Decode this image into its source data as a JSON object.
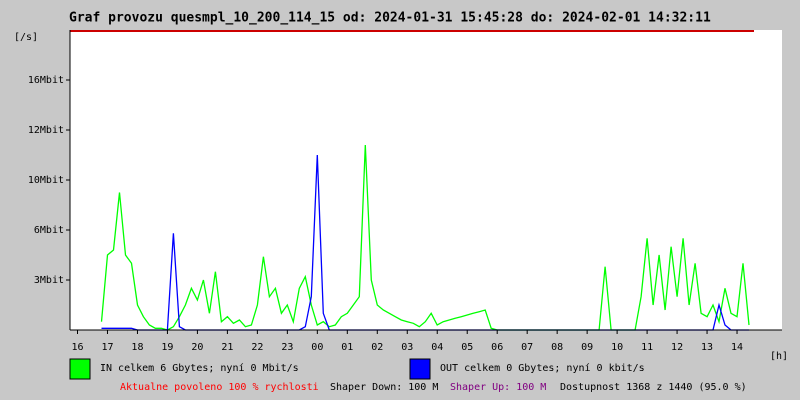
{
  "chart_data": {
    "type": "line",
    "title": "Graf provozu quesmpl_10_200_114_15 od: 2024-01-31 15:45:28 do: 2024-02-01 14:32:11",
    "y_label": "[/s]",
    "x_label": "[h]",
    "xlim": [
      15.75,
      39.5
    ],
    "xticks": [
      16,
      17,
      18,
      19,
      20,
      21,
      22,
      23,
      {
        "value": 24,
        "label": "00"
      },
      {
        "value": 25,
        "label": "01"
      },
      {
        "value": 26,
        "label": "02"
      },
      {
        "value": 27,
        "label": "03"
      },
      {
        "value": 28,
        "label": "04"
      },
      {
        "value": 29,
        "label": "05"
      },
      {
        "value": 30,
        "label": "06"
      },
      {
        "value": 31,
        "label": "07"
      },
      {
        "value": 32,
        "label": "08"
      },
      {
        "value": 33,
        "label": "09"
      },
      {
        "value": 34,
        "label": "10"
      },
      {
        "value": 35,
        "label": "11"
      },
      {
        "value": 36,
        "label": "12"
      },
      {
        "value": 37,
        "label": "13"
      },
      {
        "value": 38,
        "label": "14"
      }
    ],
    "ylim": [
      0,
      20
    ],
    "yticks": [
      {
        "value": 3,
        "label": "3Mbit"
      },
      {
        "value": 6,
        "label": "6Mbit"
      },
      {
        "value": 10,
        "label": "10Mbit"
      },
      {
        "value": 12,
        "label": "12Mbit"
      },
      {
        "value": 16,
        "label": "16Mbit"
      }
    ],
    "x": [
      16.8,
      17,
      17.2,
      17.4,
      17.6,
      17.8,
      18,
      18.2,
      18.4,
      18.6,
      18.8,
      19,
      19.2,
      19.4,
      19.6,
      19.8,
      20,
      20.2,
      20.4,
      20.6,
      20.8,
      21,
      21.2,
      21.4,
      21.6,
      21.8,
      22,
      22.2,
      22.4,
      22.6,
      22.8,
      23,
      23.2,
      23.4,
      23.6,
      23.8,
      24,
      24.2,
      24.4,
      24.6,
      24.8,
      25,
      25.2,
      25.4,
      25.6,
      25.8,
      26,
      26.2,
      26.4,
      26.6,
      26.8,
      27,
      27.2,
      27.4,
      27.6,
      27.8,
      28,
      28.2,
      28.4,
      28.6,
      28.8,
      29,
      29.2,
      29.4,
      29.6,
      29.8,
      30,
      30.2,
      30.4,
      30.6,
      30.8,
      31,
      31.2,
      31.4,
      31.6,
      31.8,
      32,
      32.2,
      32.4,
      32.6,
      32.8,
      33,
      33.2,
      33.4,
      33.6,
      33.8,
      34,
      34.2,
      34.4,
      34.6,
      34.8,
      35,
      35.2,
      35.4,
      35.6,
      35.8,
      36,
      36.2,
      36.4,
      36.6,
      36.8,
      37,
      37.2,
      37.4,
      37.6,
      37.8,
      38,
      38.2,
      38.4
    ],
    "series": [
      {
        "name": "IN celkem 6 Gbytes; nyní 0 Mbit/s",
        "color": "#00ff00",
        "values": [
          0.5,
          4.5,
          4.8,
          9,
          4.5,
          4,
          1.5,
          0.8,
          0.3,
          0.1,
          0.1,
          0,
          0.2,
          0.8,
          1.5,
          2.5,
          1.8,
          3,
          1,
          3.5,
          0.5,
          0.8,
          0.4,
          0.6,
          0.2,
          0.3,
          1.5,
          4.4,
          2,
          2.5,
          1,
          1.5,
          0.5,
          2.5,
          3.2,
          1.5,
          0.3,
          0.5,
          0.2,
          0.3,
          0.8,
          1,
          1.5,
          2,
          11.4,
          3,
          1.5,
          1.2,
          1,
          0.8,
          0.6,
          0.5,
          0.4,
          0.2,
          0.5,
          1,
          0.3,
          0.5,
          0.6,
          0.7,
          0.8,
          0.9,
          1,
          1.1,
          1.2,
          0.1,
          0,
          0,
          0,
          0,
          0,
          0,
          0,
          0,
          0,
          0,
          0,
          0,
          0,
          0,
          0,
          0,
          0,
          0,
          3.8,
          0,
          0,
          0,
          0,
          0,
          2,
          5.5,
          1.5,
          4.5,
          1.2,
          5,
          2,
          5.5,
          1.5,
          4,
          1,
          0.8,
          1.5,
          0.5,
          2.5,
          1,
          0.8,
          4,
          0.3
        ]
      },
      {
        "name": "OUT celkem 0 Gbytes; nyní 0 kbit/s",
        "color": "#0000ff",
        "values": [
          0.1,
          0.1,
          0.1,
          0.1,
          0.1,
          0.1,
          0,
          0,
          0,
          0,
          0,
          0,
          5.8,
          0.2,
          0,
          0,
          0,
          0,
          0,
          0,
          0,
          0,
          0,
          0,
          0,
          0,
          0,
          0,
          0,
          0,
          0,
          0,
          0,
          0,
          0.2,
          2,
          11,
          1,
          0,
          0,
          0,
          0,
          0,
          0,
          0,
          0,
          0,
          0,
          0,
          0,
          0,
          0,
          0,
          0,
          0,
          0,
          0,
          0,
          0,
          0,
          0,
          0,
          0,
          0,
          0,
          0,
          0,
          0,
          0,
          0,
          0,
          0,
          0,
          0,
          0,
          0,
          0,
          0,
          0,
          0,
          0,
          0,
          0,
          0,
          0,
          0,
          0,
          0,
          0,
          0,
          0,
          0,
          0,
          0,
          0,
          0,
          0,
          0,
          0,
          0,
          0,
          0,
          0,
          1.5,
          0.3,
          0,
          0,
          0,
          0
        ]
      }
    ],
    "footer": [
      {
        "text": "Aktualne povoleno 100 % rychlosti",
        "color": "#ff0000"
      },
      {
        "text": "Shaper Down: 100 M",
        "color": "#000000"
      },
      {
        "text": "Shaper Up: 100 M",
        "color": "#800080"
      },
      {
        "text": "Dostupnost 1368 z 1440 (95.0 %)",
        "color": "#000000"
      }
    ]
  }
}
